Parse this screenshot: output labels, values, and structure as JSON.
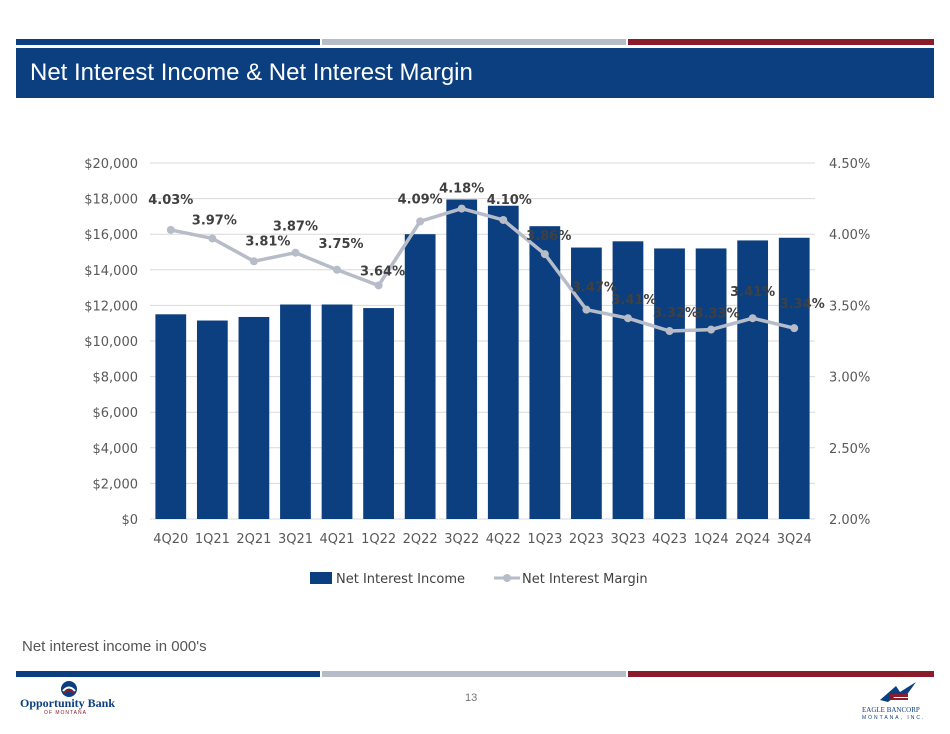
{
  "header": {
    "title": "Net Interest Income & Net Interest Margin",
    "strip_colors": [
      "#0b3f80",
      "#b7bcc9",
      "#8a1c2c"
    ]
  },
  "footnote": "Net interest income in 000's",
  "page_number": "13",
  "logos": {
    "left": {
      "name": "Opportunity Bank",
      "sub": "OF MONTANA"
    },
    "right": {
      "name": "EAGLE BANCORP",
      "sub": "MONTANA, INC."
    }
  },
  "chart_data": {
    "type": "bar",
    "categories": [
      "4Q20",
      "1Q21",
      "2Q21",
      "3Q21",
      "4Q21",
      "1Q22",
      "2Q22",
      "3Q22",
      "4Q22",
      "1Q23",
      "2Q23",
      "3Q23",
      "4Q23",
      "1Q24",
      "2Q24",
      "3Q24"
    ],
    "series": [
      {
        "name": "Net Interest Income",
        "type": "bar",
        "axis": "left",
        "color": "#0b3f80",
        "values": [
          11500,
          11150,
          11350,
          12050,
          12050,
          11850,
          16000,
          17950,
          17600,
          16450,
          15250,
          15600,
          15200,
          15200,
          15650,
          15800
        ]
      },
      {
        "name": "Net Interest Margin",
        "type": "line",
        "axis": "right",
        "color": "#b7bcc9",
        "values": [
          4.03,
          3.97,
          3.81,
          3.87,
          3.75,
          3.64,
          4.09,
          4.18,
          4.1,
          3.86,
          3.47,
          3.41,
          3.32,
          3.33,
          3.41,
          3.34
        ],
        "labels": [
          "4.03%",
          "3.97%",
          "3.81%",
          "3.87%",
          "3.75%",
          "3.64%",
          "4.09%",
          "4.18%",
          "4.10%",
          "3.86%",
          "3.47%",
          "3.41%",
          "3.32%",
          "3.33%",
          "3.41%",
          "3.34%"
        ]
      }
    ],
    "left_axis": {
      "min": 0,
      "max": 20000,
      "step": 2000,
      "ticks": [
        "$0",
        "$2,000",
        "$4,000",
        "$6,000",
        "$8,000",
        "$10,000",
        "$12,000",
        "$14,000",
        "$16,000",
        "$18,000",
        "$20,000"
      ]
    },
    "right_axis": {
      "min": 2.0,
      "max": 4.5,
      "step": 0.5,
      "ticks": [
        "2.00%",
        "2.50%",
        "3.00%",
        "3.50%",
        "4.00%",
        "4.50%"
      ]
    },
    "legend": {
      "position": "bottom",
      "items": [
        "Net Interest Income",
        "Net Interest Margin"
      ]
    },
    "grid": true,
    "title": ""
  }
}
